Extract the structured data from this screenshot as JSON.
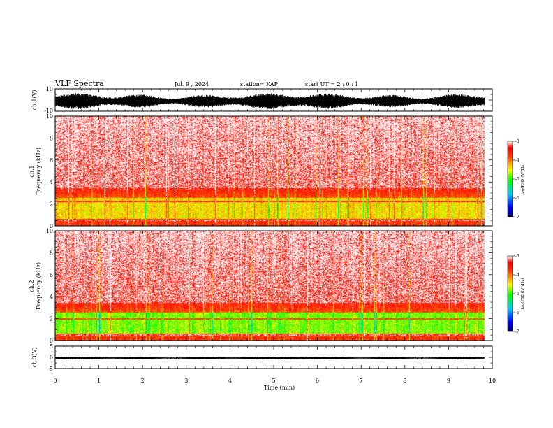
{
  "header": {
    "title": "VLF Spectra",
    "date": "Jul. 9 , 2024",
    "station": "station= KAP",
    "start": "start  UT =  2 : 0  : 1"
  },
  "chart_data": [
    {
      "type": "line",
      "name": "ch1-waveform",
      "ylabel": "ch.1(V)",
      "ylim": [
        -10,
        10
      ],
      "xlim": [
        0,
        10
      ],
      "ytick_labels": [
        "10",
        "-10"
      ],
      "data_end_min": 9.82
    },
    {
      "type": "heatmap",
      "name": "ch1-spectrogram",
      "ylabel": "ch.1\nFrequency (kHz)",
      "ylabel_lines": [
        "ch.1",
        "Frequency (kHz)"
      ],
      "ylim": [
        0,
        10
      ],
      "yticks": [
        0,
        2,
        4,
        6,
        8,
        10
      ],
      "xlim": [
        0,
        10
      ],
      "data_end_min": 9.82,
      "colorbar": {
        "label": "log(PSD)(V²/Hz)",
        "range": [
          -7,
          -3
        ],
        "tick_labels": [
          "-3",
          "-4",
          "-5",
          "-6",
          "-7"
        ]
      }
    },
    {
      "type": "heatmap",
      "name": "ch2-spectrogram",
      "ylabel": "ch.2\nFrequency (kHz)",
      "ylabel_lines": [
        "ch.2",
        "Frequency (kHz)"
      ],
      "ylim": [
        0,
        10
      ],
      "yticks": [
        0,
        2,
        4,
        6,
        8,
        10
      ],
      "xlim": [
        0,
        10
      ],
      "data_end_min": 9.82,
      "colorbar": {
        "label": "log(PSD)(V²/Hz)",
        "range": [
          -7,
          -3
        ],
        "tick_labels": [
          "-3",
          "-4",
          "-5",
          "-6",
          "-7"
        ]
      }
    },
    {
      "type": "line",
      "name": "ch3-waveform",
      "ylabel": "ch.3(V)",
      "ylim": [
        -5,
        5
      ],
      "xlim": [
        0,
        10
      ],
      "ytick_labels": [
        "5",
        "0",
        "-5"
      ],
      "data_end_min": 9.82
    }
  ],
  "xaxis": {
    "label": "Time (min)",
    "tick_labels": [
      "0",
      "1",
      "2",
      "3",
      "4",
      "5",
      "6",
      "7",
      "8",
      "9",
      "10"
    ]
  }
}
